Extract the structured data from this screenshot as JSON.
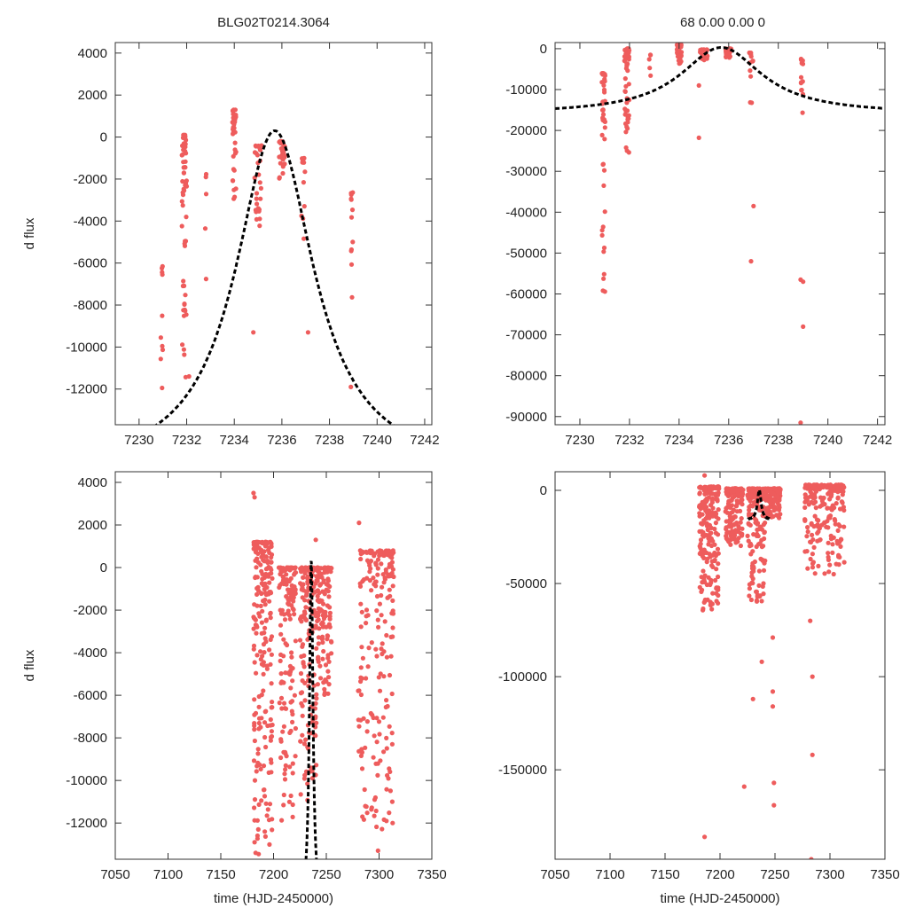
{
  "colors": {
    "points": "#ee5c5c",
    "model": "#000000",
    "frame": "#333333",
    "text": "#222222"
  },
  "chart_data": [
    {
      "type": "scatter",
      "title": "BLG02T0214.3064",
      "xlabel": "",
      "ylabel": "d flux",
      "xlim": [
        7229,
        7242.3
      ],
      "ylim": [
        -13700,
        4500
      ],
      "xticks": [
        7230,
        7232,
        7234,
        7236,
        7238,
        7240,
        7242
      ],
      "yticks": [
        4000,
        2000,
        0,
        -2000,
        -4000,
        -6000,
        -8000,
        -10000,
        -12000
      ],
      "model": {
        "t0": 7235.7,
        "peak": 300,
        "base": -16000,
        "width": 2.2
      },
      "clusters": [
        {
          "t": 7230.95,
          "dt": 0.06,
          "ymin": -12000,
          "ymax": -6000,
          "n": 10
        },
        {
          "t": 7231.9,
          "dt": 0.1,
          "ymin": -11500,
          "ymax": 100,
          "n": 55
        },
        {
          "t": 7232.8,
          "dt": 0.05,
          "ymin": -7800,
          "ymax": -1700,
          "n": 5
        },
        {
          "t": 7234.0,
          "dt": 0.08,
          "ymin": -3100,
          "ymax": 1300,
          "n": 38
        },
        {
          "t": 7235.0,
          "dt": 0.15,
          "ymin": -4300,
          "ymax": -400,
          "n": 28
        },
        {
          "t": 7236.0,
          "dt": 0.12,
          "ymin": -2000,
          "ymax": -200,
          "n": 35
        },
        {
          "t": 7236.9,
          "dt": 0.08,
          "ymin": -5000,
          "ymax": -1000,
          "n": 12
        },
        {
          "t": 7238.95,
          "dt": 0.04,
          "ymin": -8700,
          "ymax": -2600,
          "n": 12
        }
      ],
      "outliers": [
        [
          7234.8,
          -9300
        ],
        [
          7237.1,
          -9300
        ],
        [
          7238.9,
          -11900
        ],
        [
          7232.1,
          -11400
        ]
      ]
    },
    {
      "type": "scatter",
      "title": "68   0.00   0.00   0",
      "xlabel": "",
      "ylabel": "",
      "xlim": [
        7229,
        7242.3
      ],
      "ylim": [
        -92000,
        1500
      ],
      "xticks": [
        7230,
        7232,
        7234,
        7236,
        7238,
        7240,
        7242
      ],
      "yticks": [
        0,
        -10000,
        -20000,
        -30000,
        -40000,
        -50000,
        -60000,
        -70000,
        -80000,
        -90000
      ],
      "model": {
        "t0": 7235.7,
        "peak": 300,
        "base": -16000,
        "width": 2.2
      },
      "clusters": [
        {
          "t": 7230.95,
          "dt": 0.07,
          "ymin": -64000,
          "ymax": -6000,
          "n": 45
        },
        {
          "t": 7231.9,
          "dt": 0.1,
          "ymin": -25500,
          "ymax": 0,
          "n": 55
        },
        {
          "t": 7232.8,
          "dt": 0.05,
          "ymin": -7000,
          "ymax": -1500,
          "n": 5
        },
        {
          "t": 7234.0,
          "dt": 0.1,
          "ymin": -4000,
          "ymax": 1000,
          "n": 38
        },
        {
          "t": 7235.0,
          "dt": 0.15,
          "ymin": -3500,
          "ymax": -200,
          "n": 28
        },
        {
          "t": 7236.0,
          "dt": 0.12,
          "ymin": -2500,
          "ymax": 0,
          "n": 35
        },
        {
          "t": 7236.9,
          "dt": 0.08,
          "ymin": -16500,
          "ymax": -1000,
          "n": 12
        },
        {
          "t": 7238.95,
          "dt": 0.05,
          "ymin": -17000,
          "ymax": -2500,
          "n": 14
        }
      ],
      "outliers": [
        [
          7234.8,
          -21800
        ],
        [
          7234.8,
          -9000
        ],
        [
          7237.0,
          -38500
        ],
        [
          7236.9,
          -52000
        ],
        [
          7238.9,
          -56500
        ],
        [
          7239.0,
          -57000
        ],
        [
          7239.0,
          -68000
        ],
        [
          7238.9,
          -91500
        ]
      ]
    },
    {
      "type": "scatter",
      "title": "",
      "xlabel": "time (HJD-2450000)",
      "ylabel": "d flux",
      "xlim": [
        7050,
        7350
      ],
      "ylim": [
        -13700,
        4500
      ],
      "xticks": [
        7050,
        7100,
        7150,
        7200,
        7250,
        7300,
        7350
      ],
      "yticks": [
        4000,
        2000,
        0,
        -2000,
        -4000,
        -6000,
        -8000,
        -10000,
        -12000
      ],
      "model": {
        "t0": 7235.7,
        "peak": 300,
        "base": -16000,
        "width": 2.2
      },
      "clusters": [
        {
          "t": 7190,
          "dt": 9,
          "ymin": -13600,
          "ymax": 1200,
          "n": 230
        },
        {
          "t": 7213,
          "dt": 8,
          "ymin": -12000,
          "ymax": 0,
          "n": 150
        },
        {
          "t": 7233,
          "dt": 8,
          "ymin": -11000,
          "ymax": 0,
          "n": 150
        },
        {
          "t": 7248,
          "dt": 7,
          "ymin": -6000,
          "ymax": 0,
          "n": 120
        },
        {
          "t": 7297,
          "dt": 17,
          "ymin": -12300,
          "ymax": 800,
          "n": 200
        }
      ],
      "outliers": [
        [
          7181,
          3500
        ],
        [
          7182,
          3300
        ],
        [
          7240,
          1300
        ],
        [
          7281,
          2100
        ],
        [
          7182,
          -12900
        ],
        [
          7183,
          -13400
        ],
        [
          7299,
          -13300
        ],
        [
          7307,
          -11900
        ]
      ]
    },
    {
      "type": "scatter",
      "title": "",
      "xlabel": "time (HJD-2450000)",
      "ylabel": "",
      "xlim": [
        7050,
        7350
      ],
      "ylim": [
        -198000,
        10000
      ],
      "xticks": [
        7050,
        7100,
        7150,
        7200,
        7250,
        7300,
        7350
      ],
      "yticks": [
        0,
        -50000,
        -100000,
        -150000
      ],
      "model": {
        "t0": 7235.7,
        "peak": 300,
        "base": -16000,
        "width": 2.2
      },
      "clusters": [
        {
          "t": 7190,
          "dt": 9,
          "ymin": -65000,
          "ymax": 2000,
          "n": 200
        },
        {
          "t": 7213,
          "dt": 8,
          "ymin": -30000,
          "ymax": 1000,
          "n": 150
        },
        {
          "t": 7233,
          "dt": 8,
          "ymin": -60000,
          "ymax": 1000,
          "n": 150
        },
        {
          "t": 7248,
          "dt": 7,
          "ymin": -15000,
          "ymax": 1000,
          "n": 120
        },
        {
          "t": 7295,
          "dt": 18,
          "ymin": -45000,
          "ymax": 3000,
          "n": 200
        }
      ],
      "outliers": [
        [
          7186,
          8000
        ],
        [
          7186,
          -186000
        ],
        [
          7222,
          -159000
        ],
        [
          7230,
          -112000
        ],
        [
          7238,
          -92000
        ],
        [
          7248,
          -79000
        ],
        [
          7248,
          -108000
        ],
        [
          7248,
          -116000
        ],
        [
          7249,
          -157000
        ],
        [
          7249,
          -169000
        ],
        [
          7282,
          -70000
        ],
        [
          7284,
          -100000
        ],
        [
          7284,
          -142000
        ],
        [
          7283,
          -198000
        ]
      ]
    }
  ]
}
